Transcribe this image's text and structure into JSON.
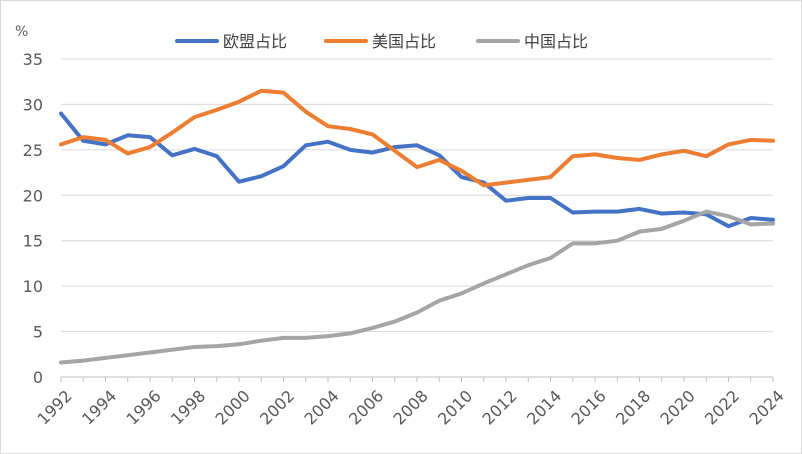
{
  "chart_data": {
    "type": "line",
    "unit_label": "%",
    "x": [
      1992,
      1993,
      1994,
      1995,
      1996,
      1997,
      1998,
      1999,
      2000,
      2001,
      2002,
      2003,
      2004,
      2005,
      2006,
      2007,
      2008,
      2009,
      2010,
      2011,
      2012,
      2013,
      2014,
      2015,
      2016,
      2017,
      2018,
      2019,
      2020,
      2021,
      2022,
      2023,
      2024
    ],
    "x_tick_labels": [
      "1992",
      "1994",
      "1996",
      "1998",
      "2000",
      "2002",
      "2004",
      "2006",
      "2008",
      "2010",
      "2012",
      "2014",
      "2016",
      "2018",
      "2020",
      "2022",
      "2024"
    ],
    "y_tick_labels": [
      "0",
      "5",
      "10",
      "15",
      "20",
      "25",
      "30",
      "35"
    ],
    "ylim": [
      0,
      35
    ],
    "grid": "horizontal",
    "legend_position": "top",
    "series": [
      {
        "name": "欧盟占比",
        "color": "#4472C4",
        "values": [
          29.0,
          26.0,
          25.6,
          26.6,
          26.4,
          24.4,
          25.1,
          24.3,
          21.5,
          22.1,
          23.2,
          25.5,
          25.9,
          25.0,
          24.7,
          25.3,
          25.5,
          24.4,
          22.0,
          21.4,
          19.4,
          19.7,
          19.7,
          18.1,
          18.2,
          18.2,
          18.5,
          18.0,
          18.1,
          17.9,
          16.6,
          17.5,
          17.3
        ]
      },
      {
        "name": "美国占比",
        "color": "#ED7D31",
        "values": [
          25.6,
          26.4,
          26.1,
          24.6,
          25.3,
          26.9,
          28.6,
          29.4,
          30.3,
          31.5,
          31.3,
          29.2,
          27.6,
          27.3,
          26.7,
          24.9,
          23.1,
          23.9,
          22.7,
          21.1,
          21.4,
          21.7,
          22.0,
          24.3,
          24.5,
          24.1,
          23.9,
          24.5,
          24.9,
          24.3,
          25.6,
          26.1,
          26.0
        ]
      },
      {
        "name": "中国占比",
        "color": "#A5A5A5",
        "values": [
          1.6,
          1.8,
          2.1,
          2.4,
          2.7,
          3.0,
          3.3,
          3.4,
          3.6,
          4.0,
          4.3,
          4.3,
          4.5,
          4.8,
          5.4,
          6.1,
          7.1,
          8.4,
          9.2,
          10.3,
          11.3,
          12.3,
          13.1,
          14.7,
          14.7,
          15.0,
          16.0,
          16.3,
          17.2,
          18.2,
          17.7,
          16.8,
          16.9
        ]
      }
    ]
  }
}
